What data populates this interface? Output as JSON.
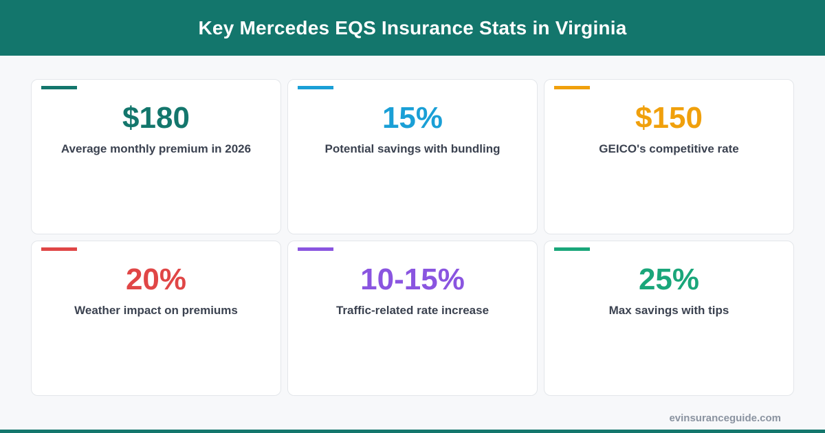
{
  "header": {
    "title": "Key Mercedes EQS Insurance Stats in Virginia"
  },
  "stats": [
    {
      "value": "$180",
      "label": "Average monthly premium in 2026",
      "color": "#13766c"
    },
    {
      "value": "15%",
      "label": "Potential savings with bundling",
      "color": "#1a9fd6"
    },
    {
      "value": "$150",
      "label": "GEICO's competitive rate",
      "color": "#f0a00c"
    },
    {
      "value": "20%",
      "label": "Weather impact on premiums",
      "color": "#e04646"
    },
    {
      "value": "10-15%",
      "label": "Traffic-related rate increase",
      "color": "#8a55e0"
    },
    {
      "value": "25%",
      "label": "Max savings with tips",
      "color": "#1aa67a"
    }
  ],
  "footer": {
    "site": "evinsuranceguide.com"
  },
  "colors": {
    "header_bg": "#13766c",
    "page_bg": "#f7f8fa"
  }
}
